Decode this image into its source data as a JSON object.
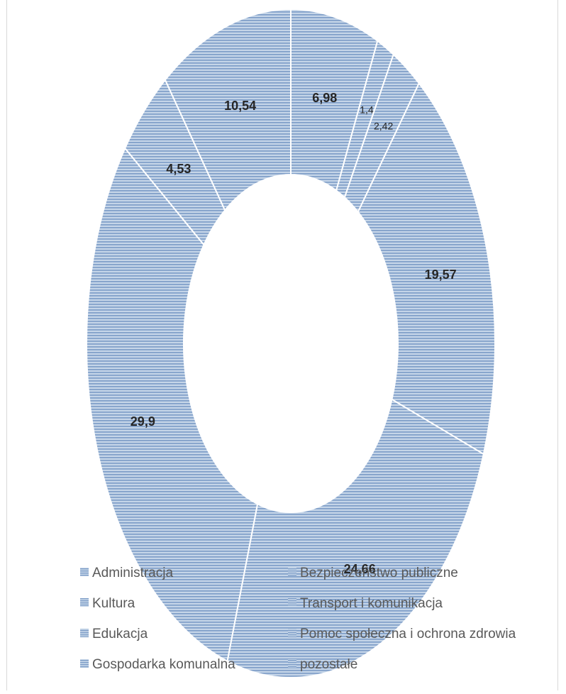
{
  "chart_data": {
    "type": "pie",
    "subtype": "doughnut",
    "categories": [
      "Administracja",
      "Bezpieczeństwo publiczne",
      "Kultura",
      "Transport i komunikacja",
      "Edukacja",
      "Pomoc społeczna i ochrona zdrowia",
      "Gospodarka komunalna",
      "pozostałe"
    ],
    "values": [
      6.98,
      1.4,
      2.42,
      19.57,
      24.66,
      29.9,
      4.53,
      10.54
    ],
    "data_labels": [
      "6,98",
      "1,4",
      "2,42",
      "19,57",
      "24,66",
      "29,9",
      "4,53",
      "10,54"
    ],
    "legend_position": "bottom",
    "colors": {
      "fill": "#b8cce4",
      "stripe": "#4f81bd",
      "separator": "#ffffff",
      "label": "#262626",
      "legend_text": "#595959",
      "frame": "#d9d9d9"
    }
  }
}
